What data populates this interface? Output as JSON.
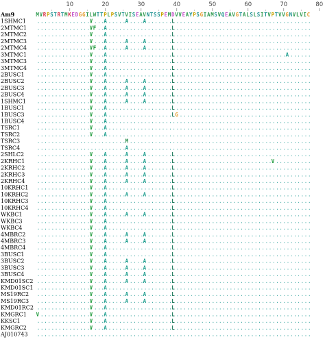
{
  "alignment": {
    "ruler": [
      "10",
      "20",
      "30",
      "40",
      "50",
      "60",
      "70",
      "80"
    ],
    "reference": {
      "name": "Am9",
      "sequence": "MVRPSTRTMKEDGGILWTTPLPSVTVISEAVNTSSPEMDVVEAYPSGIAMSVQEAVGTALSLSITVPTVVGNVLVIC"
    },
    "rows": [
      {
        "name": "1SHMC1",
        "diffs": [
          {
            "pos": 16,
            "aa": "V"
          },
          {
            "pos": 20,
            "aa": "A"
          },
          {
            "pos": 26,
            "aa": "A"
          },
          {
            "pos": 31,
            "aa": "A"
          },
          {
            "pos": 39,
            "aa": "L"
          }
        ]
      },
      {
        "name": "2MTMC1",
        "diffs": [
          {
            "pos": 16,
            "aa": "V"
          },
          {
            "pos": 17,
            "aa": "F"
          },
          {
            "pos": 20,
            "aa": "A"
          },
          {
            "pos": 39,
            "aa": "L"
          }
        ]
      },
      {
        "name": "2MTMC2",
        "diffs": [
          {
            "pos": 16,
            "aa": "V"
          },
          {
            "pos": 20,
            "aa": "A"
          },
          {
            "pos": 39,
            "aa": "L"
          }
        ]
      },
      {
        "name": "2MTMC3",
        "diffs": [
          {
            "pos": 16,
            "aa": "V"
          },
          {
            "pos": 20,
            "aa": "A"
          },
          {
            "pos": 26,
            "aa": "A"
          },
          {
            "pos": 31,
            "aa": "A"
          },
          {
            "pos": 39,
            "aa": "L"
          }
        ]
      },
      {
        "name": "2MTMC4",
        "diffs": [
          {
            "pos": 16,
            "aa": "V"
          },
          {
            "pos": 17,
            "aa": "F"
          },
          {
            "pos": 20,
            "aa": "A"
          },
          {
            "pos": 26,
            "aa": "A"
          },
          {
            "pos": 31,
            "aa": "A"
          },
          {
            "pos": 39,
            "aa": "L"
          }
        ]
      },
      {
        "name": "3MTMC1",
        "diffs": [
          {
            "pos": 16,
            "aa": "V"
          },
          {
            "pos": 20,
            "aa": "A"
          },
          {
            "pos": 39,
            "aa": "L"
          },
          {
            "pos": 71,
            "aa": "A"
          }
        ]
      },
      {
        "name": "3MTMC3",
        "diffs": [
          {
            "pos": 16,
            "aa": "V"
          },
          {
            "pos": 20,
            "aa": "A"
          },
          {
            "pos": 39,
            "aa": "L"
          }
        ]
      },
      {
        "name": "3MTMC4",
        "diffs": [
          {
            "pos": 16,
            "aa": "V"
          },
          {
            "pos": 20,
            "aa": "A"
          },
          {
            "pos": 39,
            "aa": "L"
          }
        ]
      },
      {
        "name": "2BUSC1",
        "diffs": [
          {
            "pos": 16,
            "aa": "V"
          },
          {
            "pos": 20,
            "aa": "A"
          },
          {
            "pos": 39,
            "aa": "L"
          }
        ]
      },
      {
        "name": "2BUSC2",
        "diffs": [
          {
            "pos": 16,
            "aa": "V"
          },
          {
            "pos": 20,
            "aa": "A"
          },
          {
            "pos": 26,
            "aa": "A"
          },
          {
            "pos": 31,
            "aa": "A"
          },
          {
            "pos": 39,
            "aa": "L"
          }
        ]
      },
      {
        "name": "2BUSC3",
        "diffs": [
          {
            "pos": 16,
            "aa": "V"
          },
          {
            "pos": 20,
            "aa": "A"
          },
          {
            "pos": 26,
            "aa": "A"
          },
          {
            "pos": 31,
            "aa": "A"
          },
          {
            "pos": 39,
            "aa": "L"
          }
        ]
      },
      {
        "name": "2BUSC4",
        "diffs": [
          {
            "pos": 16,
            "aa": "V"
          },
          {
            "pos": 20,
            "aa": "A"
          },
          {
            "pos": 26,
            "aa": "A"
          },
          {
            "pos": 31,
            "aa": "A"
          },
          {
            "pos": 39,
            "aa": "L"
          }
        ]
      },
      {
        "name": "1SHMC1",
        "diffs": [
          {
            "pos": 16,
            "aa": "V"
          },
          {
            "pos": 20,
            "aa": "A"
          },
          {
            "pos": 26,
            "aa": "A"
          },
          {
            "pos": 31,
            "aa": "A"
          },
          {
            "pos": 39,
            "aa": "L"
          }
        ]
      },
      {
        "name": "1BUSC1",
        "diffs": [
          {
            "pos": 16,
            "aa": "V"
          },
          {
            "pos": 20,
            "aa": "A"
          },
          {
            "pos": 39,
            "aa": "L"
          }
        ]
      },
      {
        "name": "1BUSC3",
        "diffs": [
          {
            "pos": 16,
            "aa": "V"
          },
          {
            "pos": 20,
            "aa": "A"
          },
          {
            "pos": 39,
            "aa": "L"
          },
          {
            "pos": 40,
            "aa": "G"
          }
        ]
      },
      {
        "name": "1BUSC4",
        "diffs": [
          {
            "pos": 16,
            "aa": "V"
          },
          {
            "pos": 20,
            "aa": "A"
          }
        ]
      },
      {
        "name": "TSRC1",
        "diffs": [
          {
            "pos": 16,
            "aa": "V"
          },
          {
            "pos": 20,
            "aa": "A"
          }
        ]
      },
      {
        "name": "TSRC2",
        "diffs": [
          {
            "pos": 16,
            "aa": "V"
          },
          {
            "pos": 20,
            "aa": "A"
          }
        ]
      },
      {
        "name": "TSRC3",
        "diffs": [
          {
            "pos": 26,
            "aa": "M"
          }
        ]
      },
      {
        "name": "TSRC4",
        "diffs": [
          {
            "pos": 26,
            "aa": "A"
          }
        ]
      },
      {
        "name": "2SHLC2",
        "diffs": [
          {
            "pos": 16,
            "aa": "V"
          },
          {
            "pos": 20,
            "aa": "A"
          },
          {
            "pos": 26,
            "aa": "A"
          },
          {
            "pos": 31,
            "aa": "A"
          },
          {
            "pos": 39,
            "aa": "L"
          }
        ]
      },
      {
        "name": "2KRHC1",
        "diffs": [
          {
            "pos": 16,
            "aa": "V"
          },
          {
            "pos": 20,
            "aa": "A"
          },
          {
            "pos": 26,
            "aa": "A"
          },
          {
            "pos": 31,
            "aa": "A"
          },
          {
            "pos": 39,
            "aa": "L"
          },
          {
            "pos": 67,
            "aa": "V"
          }
        ]
      },
      {
        "name": "2KRHC2",
        "diffs": [
          {
            "pos": 16,
            "aa": "V"
          },
          {
            "pos": 20,
            "aa": "A"
          },
          {
            "pos": 26,
            "aa": "A"
          },
          {
            "pos": 31,
            "aa": "A"
          },
          {
            "pos": 39,
            "aa": "L"
          }
        ]
      },
      {
        "name": "2KRHC3",
        "diffs": [
          {
            "pos": 16,
            "aa": "V"
          },
          {
            "pos": 20,
            "aa": "A"
          },
          {
            "pos": 26,
            "aa": "A"
          },
          {
            "pos": 31,
            "aa": "A"
          },
          {
            "pos": 39,
            "aa": "L"
          }
        ]
      },
      {
        "name": "2KRHC4",
        "diffs": [
          {
            "pos": 16,
            "aa": "V"
          },
          {
            "pos": 20,
            "aa": "A"
          },
          {
            "pos": 26,
            "aa": "A"
          },
          {
            "pos": 31,
            "aa": "A"
          },
          {
            "pos": 39,
            "aa": "L"
          }
        ]
      },
      {
        "name": "10KRHC1",
        "diffs": [
          {
            "pos": 16,
            "aa": "V"
          },
          {
            "pos": 20,
            "aa": "A"
          },
          {
            "pos": 39,
            "aa": "L"
          }
        ]
      },
      {
        "name": "10KRHC2",
        "diffs": [
          {
            "pos": 16,
            "aa": "V"
          },
          {
            "pos": 20,
            "aa": "A"
          },
          {
            "pos": 26,
            "aa": "A"
          },
          {
            "pos": 31,
            "aa": "A"
          },
          {
            "pos": 39,
            "aa": "L"
          }
        ]
      },
      {
        "name": "10KRHC3",
        "diffs": [
          {
            "pos": 16,
            "aa": "V"
          },
          {
            "pos": 20,
            "aa": "A"
          },
          {
            "pos": 39,
            "aa": "L"
          }
        ]
      },
      {
        "name": "10KRHC4",
        "diffs": [
          {
            "pos": 16,
            "aa": "V"
          },
          {
            "pos": 20,
            "aa": "A"
          },
          {
            "pos": 39,
            "aa": "L"
          }
        ]
      },
      {
        "name": "WKBC1",
        "diffs": [
          {
            "pos": 16,
            "aa": "V"
          },
          {
            "pos": 20,
            "aa": "A"
          },
          {
            "pos": 26,
            "aa": "A"
          },
          {
            "pos": 31,
            "aa": "A"
          },
          {
            "pos": 39,
            "aa": "L"
          }
        ]
      },
      {
        "name": "WKBC3",
        "diffs": [
          {
            "pos": 16,
            "aa": "V"
          },
          {
            "pos": 20,
            "aa": "A"
          },
          {
            "pos": 39,
            "aa": "L"
          }
        ]
      },
      {
        "name": "WKBC4",
        "diffs": [
          {
            "pos": 16,
            "aa": "V"
          },
          {
            "pos": 20,
            "aa": "A"
          },
          {
            "pos": 39,
            "aa": "L"
          }
        ]
      },
      {
        "name": "4MBRC2",
        "diffs": [
          {
            "pos": 16,
            "aa": "V"
          },
          {
            "pos": 20,
            "aa": "A"
          },
          {
            "pos": 26,
            "aa": "A"
          },
          {
            "pos": 31,
            "aa": "A"
          },
          {
            "pos": 39,
            "aa": "L"
          }
        ]
      },
      {
        "name": "4MBRC3",
        "diffs": [
          {
            "pos": 16,
            "aa": "V"
          },
          {
            "pos": 20,
            "aa": "A"
          },
          {
            "pos": 26,
            "aa": "A"
          },
          {
            "pos": 31,
            "aa": "A"
          },
          {
            "pos": 39,
            "aa": "L"
          }
        ]
      },
      {
        "name": "4MBRC4",
        "diffs": [
          {
            "pos": 16,
            "aa": "V"
          },
          {
            "pos": 20,
            "aa": "A"
          },
          {
            "pos": 39,
            "aa": "L"
          }
        ]
      },
      {
        "name": "3BUSC1",
        "diffs": [
          {
            "pos": 16,
            "aa": "V"
          },
          {
            "pos": 20,
            "aa": "A"
          },
          {
            "pos": 39,
            "aa": "L"
          }
        ]
      },
      {
        "name": "3BUSC2",
        "diffs": [
          {
            "pos": 16,
            "aa": "V"
          },
          {
            "pos": 20,
            "aa": "A"
          },
          {
            "pos": 26,
            "aa": "A"
          },
          {
            "pos": 31,
            "aa": "A"
          },
          {
            "pos": 39,
            "aa": "L"
          }
        ]
      },
      {
        "name": "3BUSC3",
        "diffs": [
          {
            "pos": 16,
            "aa": "V"
          },
          {
            "pos": 20,
            "aa": "A"
          },
          {
            "pos": 26,
            "aa": "A"
          },
          {
            "pos": 31,
            "aa": "A"
          },
          {
            "pos": 39,
            "aa": "L"
          }
        ]
      },
      {
        "name": "3BUSC4",
        "diffs": [
          {
            "pos": 16,
            "aa": "V"
          },
          {
            "pos": 20,
            "aa": "A"
          },
          {
            "pos": 26,
            "aa": "A"
          },
          {
            "pos": 31,
            "aa": "A"
          },
          {
            "pos": 39,
            "aa": "L"
          }
        ]
      },
      {
        "name": "KMD01SC2",
        "diffs": [
          {
            "pos": 16,
            "aa": "V"
          },
          {
            "pos": 20,
            "aa": "A"
          },
          {
            "pos": 26,
            "aa": "A"
          },
          {
            "pos": 31,
            "aa": "A"
          },
          {
            "pos": 39,
            "aa": "L"
          }
        ]
      },
      {
        "name": "KMD01SC1",
        "diffs": [
          {
            "pos": 16,
            "aa": "V"
          },
          {
            "pos": 20,
            "aa": "A"
          },
          {
            "pos": 39,
            "aa": "L"
          }
        ]
      },
      {
        "name": "MS19RC2",
        "diffs": [
          {
            "pos": 16,
            "aa": "V"
          },
          {
            "pos": 20,
            "aa": "A"
          },
          {
            "pos": 26,
            "aa": "A"
          },
          {
            "pos": 31,
            "aa": "A"
          },
          {
            "pos": 39,
            "aa": "L"
          }
        ]
      },
      {
        "name": "MS19RC3",
        "diffs": [
          {
            "pos": 16,
            "aa": "V"
          },
          {
            "pos": 20,
            "aa": "A"
          },
          {
            "pos": 26,
            "aa": "A"
          },
          {
            "pos": 31,
            "aa": "A"
          },
          {
            "pos": 39,
            "aa": "L"
          }
        ]
      },
      {
        "name": "KMD01RC2",
        "diffs": [
          {
            "pos": 16,
            "aa": "V"
          },
          {
            "pos": 20,
            "aa": "A"
          },
          {
            "pos": 39,
            "aa": "L"
          }
        ]
      },
      {
        "name": "KMGRC1",
        "diffs": [
          {
            "pos": 1,
            "aa": "V"
          },
          {
            "pos": 16,
            "aa": "V"
          },
          {
            "pos": 20,
            "aa": "A"
          },
          {
            "pos": 39,
            "aa": "L"
          }
        ]
      },
      {
        "name": "KKSC1",
        "diffs": [
          {
            "pos": 16,
            "aa": "V"
          },
          {
            "pos": 20,
            "aa": "A"
          },
          {
            "pos": 39,
            "aa": "L"
          }
        ]
      },
      {
        "name": "KMGRC2",
        "diffs": [
          {
            "pos": 16,
            "aa": "V"
          },
          {
            "pos": 20,
            "aa": "A"
          },
          {
            "pos": 39,
            "aa": "L"
          }
        ]
      },
      {
        "name": "AJ010743",
        "diffs": []
      }
    ],
    "colors": {
      "A": "#1a9c8c",
      "V": "#1f9a3c",
      "F": "#1f9a3c",
      "L": "#1f7a5c",
      "G": "#e39a2a",
      "M": "#2a8f4e",
      "dots": "#3aa6a0",
      "default": "#1f9a3c"
    },
    "reference_colors": {
      "M": "#2f9a4f",
      "V": "#2f9a4f",
      "R": "#d6344a",
      "P": "#c8a400",
      "S": "#1a8f8f",
      "T": "#1a8f8f",
      "K": "#d6344a",
      "E": "#c24ec8",
      "D": "#c24ec8",
      "G": "#e39a2a",
      "I": "#2f9a4f",
      "L": "#2f9a4f",
      "W": "#2f9a4f",
      "A": "#2f9a4f",
      "N": "#1a8f8f",
      "Y": "#1a8f8f",
      "Q": "#1a8f8f",
      "C": "#e39a2a"
    }
  }
}
